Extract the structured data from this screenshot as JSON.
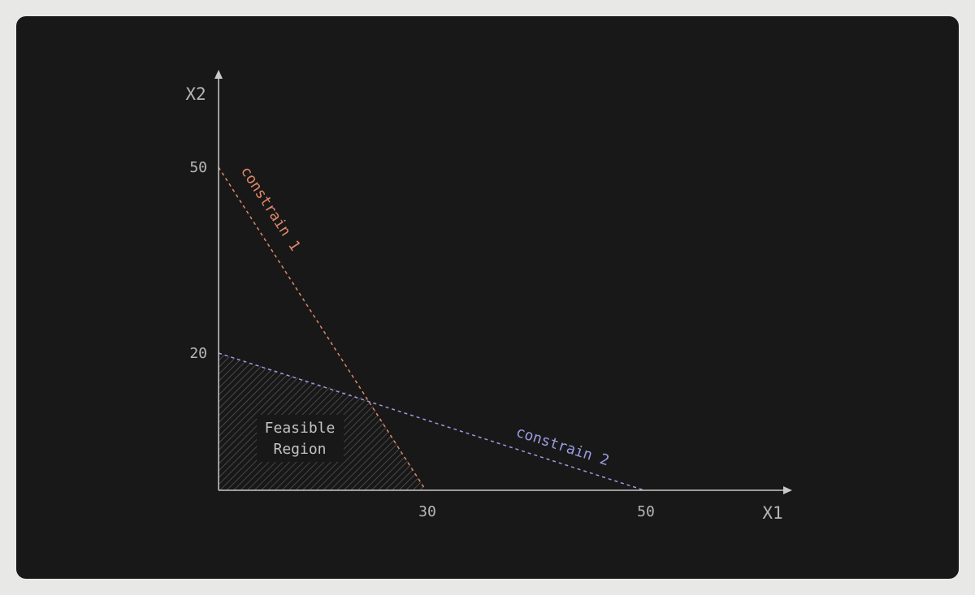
{
  "diagram": {
    "x_axis_label": "X1",
    "y_axis_label": "X2",
    "x_ticks": [
      "30",
      "50"
    ],
    "y_ticks": [
      "20",
      "50"
    ],
    "region_label": {
      "line1": "Feasible",
      "line2": "Region"
    },
    "constraint_1": {
      "label": "constrain 1",
      "color": "#e0876a",
      "x_intercept": 30,
      "y_intercept": 50
    },
    "constraint_2": {
      "label": "constrain 2",
      "color": "#9b9be0",
      "x_intercept": 50,
      "y_intercept": 20
    },
    "colors": {
      "background": "#181818",
      "axis": "#c8c8c8",
      "text": "#b6b6b6",
      "hatch": "#5a5a5a"
    }
  }
}
